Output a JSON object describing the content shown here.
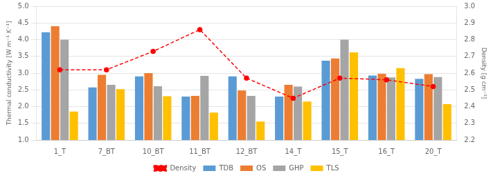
{
  "chart_data": {
    "type": "bar",
    "categories": [
      "1_T",
      "7_BT",
      "10_BT",
      "11_BT",
      "12_BT",
      "14_T",
      "15_T",
      "16_T",
      "20_T"
    ],
    "series": [
      {
        "name": "TDB",
        "color": "#5B9BD5",
        "values": [
          4.22,
          2.57,
          2.9,
          2.3,
          2.9,
          2.3,
          3.37,
          2.93,
          2.83
        ]
      },
      {
        "name": "OS",
        "color": "#ED7D31",
        "values": [
          4.4,
          2.95,
          3.0,
          2.32,
          2.48,
          2.65,
          3.44,
          2.98,
          2.97
        ]
      },
      {
        "name": "GHP",
        "color": "#A5A5A5",
        "values": [
          4.0,
          2.65,
          2.61,
          2.92,
          2.32,
          2.6,
          4.0,
          2.87,
          2.88
        ]
      },
      {
        "name": "TLS",
        "color": "#FFC000",
        "values": [
          1.85,
          2.52,
          2.31,
          1.82,
          1.55,
          2.15,
          3.62,
          3.15,
          2.07
        ]
      },
      {
        "name": "Density",
        "type": "line",
        "axis": "y2",
        "color": "#FF0000",
        "line_style": "dashed",
        "marker": "circle",
        "values": [
          2.62,
          2.62,
          2.73,
          2.86,
          2.57,
          2.45,
          2.57,
          2.56,
          2.52
        ]
      }
    ],
    "ylabel": "Thermal conductivity [W m⁻¹ K⁻¹]",
    "y2label": "Density [g cm⁻³]",
    "ylim": [
      1.0,
      5.0
    ],
    "yticks": [
      {
        "value": 1,
        "label": "1.0"
      },
      1.5,
      {
        "value": 2,
        "label": "2.0"
      },
      2.5,
      {
        "value": 3,
        "label": "3.0"
      },
      3.5,
      {
        "value": 4,
        "label": "4.0"
      },
      4.5,
      {
        "value": 5,
        "label": "5.0"
      }
    ],
    "y2lim": [
      2.2,
      3.0
    ],
    "y2ticks": [
      2.2,
      2.3,
      2.4,
      2.5,
      2.6,
      2.7,
      2.8,
      2.9,
      {
        "value": 3,
        "label": "3.0"
      }
    ],
    "grid": true,
    "legend": "bottom"
  }
}
